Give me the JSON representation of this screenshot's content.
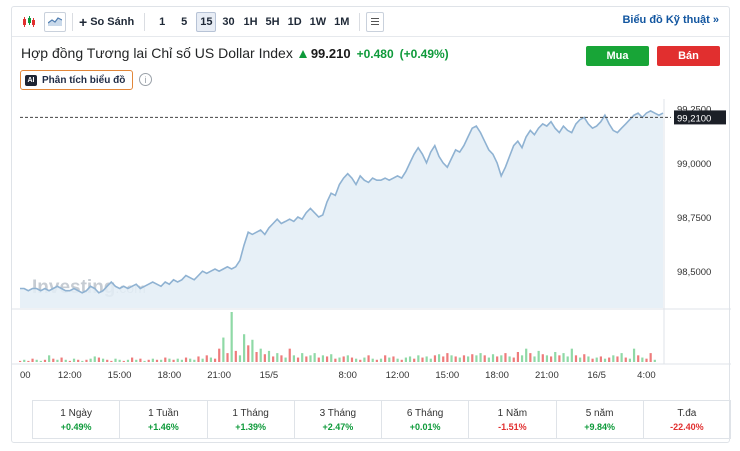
{
  "toolbar": {
    "compare_label": "So Sánh",
    "timeframes": [
      "1",
      "5",
      "15",
      "30",
      "1H",
      "5H",
      "1D",
      "1W",
      "1M"
    ],
    "active_timeframe": "15",
    "tech_chart_label": "Biểu đồ Kỹ thuật »"
  },
  "header": {
    "title": "Hợp đồng Tương lai Chỉ số US Dollar Index",
    "price": "99.210",
    "change": "+0.480",
    "change_pct": "(+0.49%)",
    "buy_label": "Mua",
    "sell_label": "Bán",
    "ai_badge": "AI",
    "ai_label": "Phân tích biểu đồ",
    "info_glyph": "i"
  },
  "chart_data": {
    "type": "area",
    "watermark": "Investing.com",
    "watermark_main": "Investing",
    "watermark_suffix": ".com",
    "ylim": [
      98.33,
      99.295
    ],
    "y_ticks": [
      "99,2500",
      "99,0000",
      "98,7500",
      "98,5000"
    ],
    "y_tick_values": [
      99.25,
      99.0,
      98.75,
      98.5
    ],
    "current_price_label": "99,2100",
    "current_price": 99.21,
    "x_ticks": [
      "00",
      "12:00",
      "15:00",
      "18:00",
      "21:00",
      "15/5",
      "8:00",
      "12:00",
      "15:00",
      "18:00",
      "21:00",
      "16/5",
      "4:00"
    ],
    "x_tick_index": [
      0,
      12,
      24,
      36,
      48,
      60,
      79,
      91,
      103,
      115,
      127,
      139,
      151
    ],
    "price_series": [
      98.42,
      98.42,
      98.41,
      98.42,
      98.42,
      98.41,
      98.42,
      98.41,
      98.42,
      98.43,
      98.42,
      98.41,
      98.41,
      98.42,
      98.41,
      98.4,
      98.41,
      98.43,
      98.42,
      98.4,
      98.41,
      98.43,
      98.45,
      98.43,
      98.42,
      98.43,
      98.42,
      98.43,
      98.44,
      98.42,
      98.43,
      98.44,
      98.45,
      98.44,
      98.43,
      98.45,
      98.44,
      98.46,
      98.45,
      98.46,
      98.48,
      98.47,
      98.46,
      98.48,
      98.5,
      98.49,
      98.5,
      98.51,
      98.5,
      98.51,
      98.52,
      98.51,
      98.52,
      98.55,
      98.62,
      98.68,
      98.67,
      98.68,
      98.69,
      98.67,
      98.7,
      98.72,
      98.74,
      98.72,
      98.73,
      98.74,
      98.73,
      98.75,
      98.74,
      98.77,
      98.79,
      98.77,
      98.75,
      98.76,
      98.82,
      98.86,
      98.85,
      98.9,
      98.93,
      98.95,
      98.93,
      98.9,
      98.94,
      98.92,
      98.91,
      98.93,
      98.92,
      98.92,
      98.93,
      98.92,
      98.93,
      98.94,
      98.93,
      98.96,
      99.0,
      99.04,
      99.07,
      99.04,
      99.0,
      99.05,
      99.08,
      99.03,
      99.0,
      98.98,
      99.02,
      99.06,
      99.05,
      99.08,
      99.12,
      99.16,
      99.17,
      99.14,
      99.1,
      99.06,
      99.04,
      99.0,
      98.94,
      98.98,
      99.03,
      99.08,
      99.1,
      99.07,
      99.12,
      99.15,
      99.13,
      99.16,
      99.18,
      99.17,
      99.19,
      99.16,
      99.14,
      99.17,
      99.15,
      99.14,
      99.18,
      99.2,
      99.21,
      99.18,
      99.16,
      99.17,
      99.19,
      99.22,
      99.18,
      99.15,
      99.14,
      99.16,
      99.18,
      99.2,
      99.22,
      99.23,
      99.21,
      99.23,
      99.24,
      99.23,
      99.22,
      99.23
    ],
    "volume_series": [
      [
        1,
        "r"
      ],
      [
        2,
        "g"
      ],
      [
        1,
        "r"
      ],
      [
        3,
        "r"
      ],
      [
        2,
        "g"
      ],
      [
        1,
        "g"
      ],
      [
        2,
        "r"
      ],
      [
        6,
        "g"
      ],
      [
        3,
        "r"
      ],
      [
        2,
        "g"
      ],
      [
        4,
        "r"
      ],
      [
        2,
        "g"
      ],
      [
        1,
        "r"
      ],
      [
        3,
        "g"
      ],
      [
        2,
        "r"
      ],
      [
        1,
        "g"
      ],
      [
        2,
        "r"
      ],
      [
        3,
        "g"
      ],
      [
        5,
        "g"
      ],
      [
        4,
        "r"
      ],
      [
        3,
        "g"
      ],
      [
        2,
        "r"
      ],
      [
        1,
        "r"
      ],
      [
        3,
        "g"
      ],
      [
        2,
        "g"
      ],
      [
        1,
        "r"
      ],
      [
        2,
        "g"
      ],
      [
        4,
        "r"
      ],
      [
        2,
        "g"
      ],
      [
        3,
        "r"
      ],
      [
        1,
        "g"
      ],
      [
        2,
        "r"
      ],
      [
        3,
        "g"
      ],
      [
        2,
        "r"
      ],
      [
        2,
        "g"
      ],
      [
        4,
        "r"
      ],
      [
        3,
        "g"
      ],
      [
        2,
        "r"
      ],
      [
        3,
        "g"
      ],
      [
        2,
        "g"
      ],
      [
        4,
        "r"
      ],
      [
        3,
        "g"
      ],
      [
        2,
        "g"
      ],
      [
        5,
        "r"
      ],
      [
        3,
        "g"
      ],
      [
        6,
        "r"
      ],
      [
        4,
        "g"
      ],
      [
        3,
        "r"
      ],
      [
        12,
        "r"
      ],
      [
        22,
        "g"
      ],
      [
        8,
        "r"
      ],
      [
        45,
        "g"
      ],
      [
        10,
        "r"
      ],
      [
        6,
        "g"
      ],
      [
        25,
        "g"
      ],
      [
        15,
        "r"
      ],
      [
        20,
        "g"
      ],
      [
        9,
        "r"
      ],
      [
        12,
        "g"
      ],
      [
        7,
        "r"
      ],
      [
        10,
        "g"
      ],
      [
        5,
        "r"
      ],
      [
        8,
        "g"
      ],
      [
        6,
        "r"
      ],
      [
        4,
        "g"
      ],
      [
        12,
        "r"
      ],
      [
        6,
        "g"
      ],
      [
        4,
        "r"
      ],
      [
        8,
        "g"
      ],
      [
        5,
        "r"
      ],
      [
        6,
        "g"
      ],
      [
        8,
        "g"
      ],
      [
        4,
        "r"
      ],
      [
        6,
        "g"
      ],
      [
        5,
        "r"
      ],
      [
        7,
        "g"
      ],
      [
        3,
        "r"
      ],
      [
        4,
        "g"
      ],
      [
        5,
        "r"
      ],
      [
        6,
        "g"
      ],
      [
        4,
        "r"
      ],
      [
        3,
        "g"
      ],
      [
        2,
        "r"
      ],
      [
        4,
        "g"
      ],
      [
        6,
        "r"
      ],
      [
        3,
        "g"
      ],
      [
        2,
        "r"
      ],
      [
        3,
        "g"
      ],
      [
        6,
        "r"
      ],
      [
        4,
        "g"
      ],
      [
        5,
        "r"
      ],
      [
        3,
        "g"
      ],
      [
        2,
        "r"
      ],
      [
        4,
        "g"
      ],
      [
        5,
        "g"
      ],
      [
        3,
        "r"
      ],
      [
        6,
        "g"
      ],
      [
        4,
        "r"
      ],
      [
        5,
        "g"
      ],
      [
        3,
        "g"
      ],
      [
        6,
        "r"
      ],
      [
        7,
        "g"
      ],
      [
        5,
        "r"
      ],
      [
        8,
        "r"
      ],
      [
        6,
        "g"
      ],
      [
        5,
        "r"
      ],
      [
        4,
        "g"
      ],
      [
        6,
        "r"
      ],
      [
        5,
        "g"
      ],
      [
        7,
        "r"
      ],
      [
        6,
        "g"
      ],
      [
        8,
        "g"
      ],
      [
        6,
        "r"
      ],
      [
        4,
        "g"
      ],
      [
        7,
        "g"
      ],
      [
        5,
        "r"
      ],
      [
        6,
        "g"
      ],
      [
        8,
        "r"
      ],
      [
        5,
        "g"
      ],
      [
        4,
        "r"
      ],
      [
        9,
        "r"
      ],
      [
        6,
        "g"
      ],
      [
        12,
        "g"
      ],
      [
        8,
        "r"
      ],
      [
        5,
        "g"
      ],
      [
        10,
        "g"
      ],
      [
        7,
        "r"
      ],
      [
        6,
        "g"
      ],
      [
        5,
        "r"
      ],
      [
        9,
        "g"
      ],
      [
        6,
        "r"
      ],
      [
        8,
        "g"
      ],
      [
        5,
        "g"
      ],
      [
        12,
        "g"
      ],
      [
        6,
        "r"
      ],
      [
        4,
        "g"
      ],
      [
        7,
        "r"
      ],
      [
        5,
        "g"
      ],
      [
        3,
        "r"
      ],
      [
        4,
        "g"
      ],
      [
        5,
        "r"
      ],
      [
        3,
        "g"
      ],
      [
        4,
        "r"
      ],
      [
        6,
        "g"
      ],
      [
        5,
        "r"
      ],
      [
        8,
        "g"
      ],
      [
        4,
        "r"
      ],
      [
        3,
        "g"
      ],
      [
        12,
        "g"
      ],
      [
        6,
        "r"
      ],
      [
        4,
        "g"
      ],
      [
        3,
        "r"
      ],
      [
        8,
        "r"
      ],
      [
        2,
        "g"
      ]
    ]
  },
  "performance": [
    {
      "label": "1 Ngày",
      "value": "+0.49%",
      "dir": "up"
    },
    {
      "label": "1 Tuần",
      "value": "+1.46%",
      "dir": "up"
    },
    {
      "label": "1 Tháng",
      "value": "+1.39%",
      "dir": "up"
    },
    {
      "label": "3 Tháng",
      "value": "+2.47%",
      "dir": "up"
    },
    {
      "label": "6 Tháng",
      "value": "+0.01%",
      "dir": "up"
    },
    {
      "label": "1 Năm",
      "value": "-1.51%",
      "dir": "down"
    },
    {
      "label": "5 năm",
      "value": "+9.84%",
      "dir": "up"
    },
    {
      "label": "T.đa",
      "value": "-22.40%",
      "dir": "down"
    }
  ],
  "colors": {
    "up": "#0e9a3a",
    "down": "#e12f2f",
    "line": "#8fb2d2",
    "fill": "#e3edf6",
    "vol_up": "#8fd9a6",
    "vol_down": "#ee7b7b"
  }
}
